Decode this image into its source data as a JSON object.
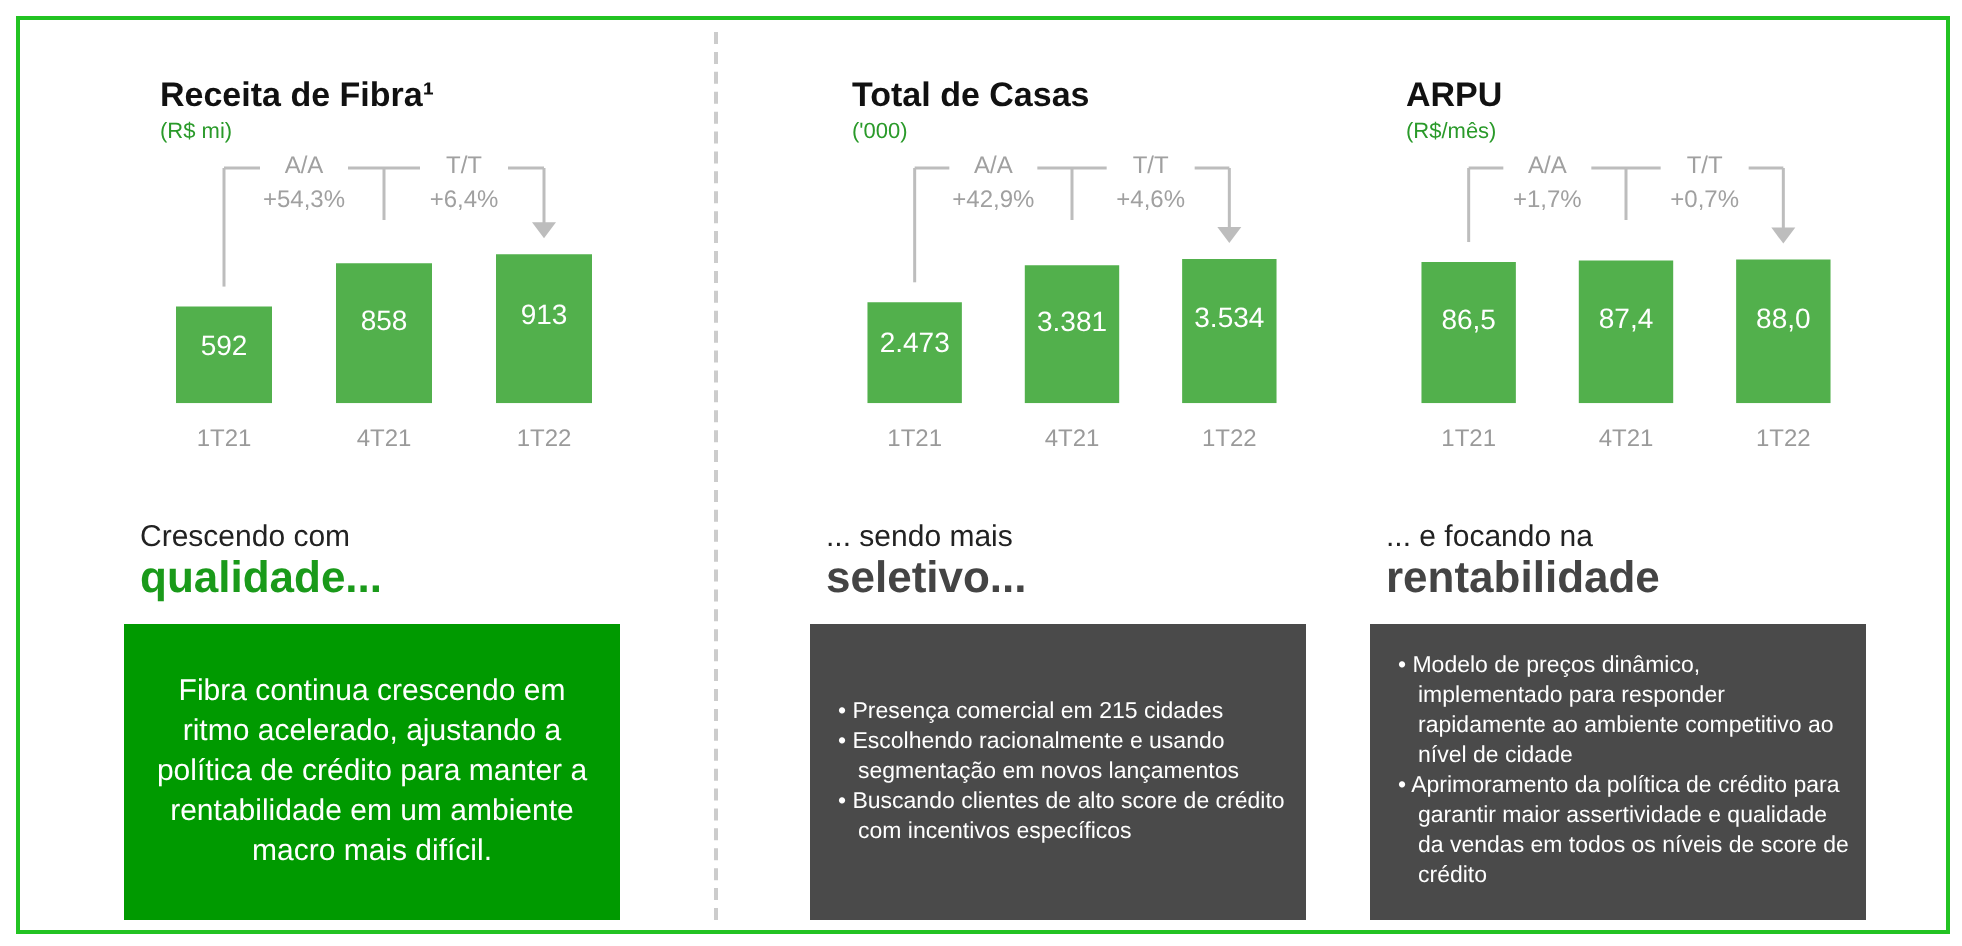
{
  "chart_data": [
    {
      "type": "bar",
      "title": "Receita de Fibra¹",
      "subtitle": "(R$ mi)",
      "categories": [
        "1T21",
        "4T21",
        "1T22"
      ],
      "values": [
        592,
        858,
        913
      ],
      "value_labels": [
        "592",
        "858",
        "913"
      ],
      "color": "#52b04c",
      "annotations": [
        "A/A\n+54,3%",
        "T/T\n+6,4%",
        "Crescendo com",
        "qualidade...",
        "Fibra continua crescendo em ritmo acelerado, ajustando a política de crédito para manter a rentabilidade em um ambiente macro mais difícil."
      ]
    },
    {
      "type": "bar",
      "title": "Total de Casas",
      "subtitle": "('000)",
      "categories": [
        "1T21",
        "4T21",
        "1T22"
      ],
      "values": [
        2473,
        3381,
        3534
      ],
      "value_labels": [
        "2.473",
        "3.381",
        "3.534"
      ],
      "color": "#52b04c",
      "annotations": [
        "A/A\n+42,9%",
        "T/T\n+4,6%",
        "... sendo mais",
        "seletivo...",
        "• Presença comercial em 215 cidades",
        "• Escolhendo racionalmente e usando segmentação em novos lançamentos",
        "• Buscando clientes de alto score de crédito com incentivos específicos"
      ]
    },
    {
      "type": "bar",
      "title": "ARPU",
      "subtitle": "(R$/mês)",
      "categories": [
        "1T21",
        "4T21",
        "1T22"
      ],
      "values": [
        86.5,
        87.4,
        88.0
      ],
      "value_labels": [
        "86,5",
        "87,4",
        "88,0"
      ],
      "color": "#52b04c",
      "annotations": [
        "A/A\n+1,7%",
        "T/T\n+0,7%",
        "... e focando na",
        "rentabilidade",
        "• Modelo de preços dinâmico, implementado para responder rapidamente ao ambiente competitivo ao nível de cidade",
        "• Aprimoramento da política de crédito para garantir maior assertividade e qualidade da vendas em todos os níveis de score de crédito"
      ]
    }
  ]
}
